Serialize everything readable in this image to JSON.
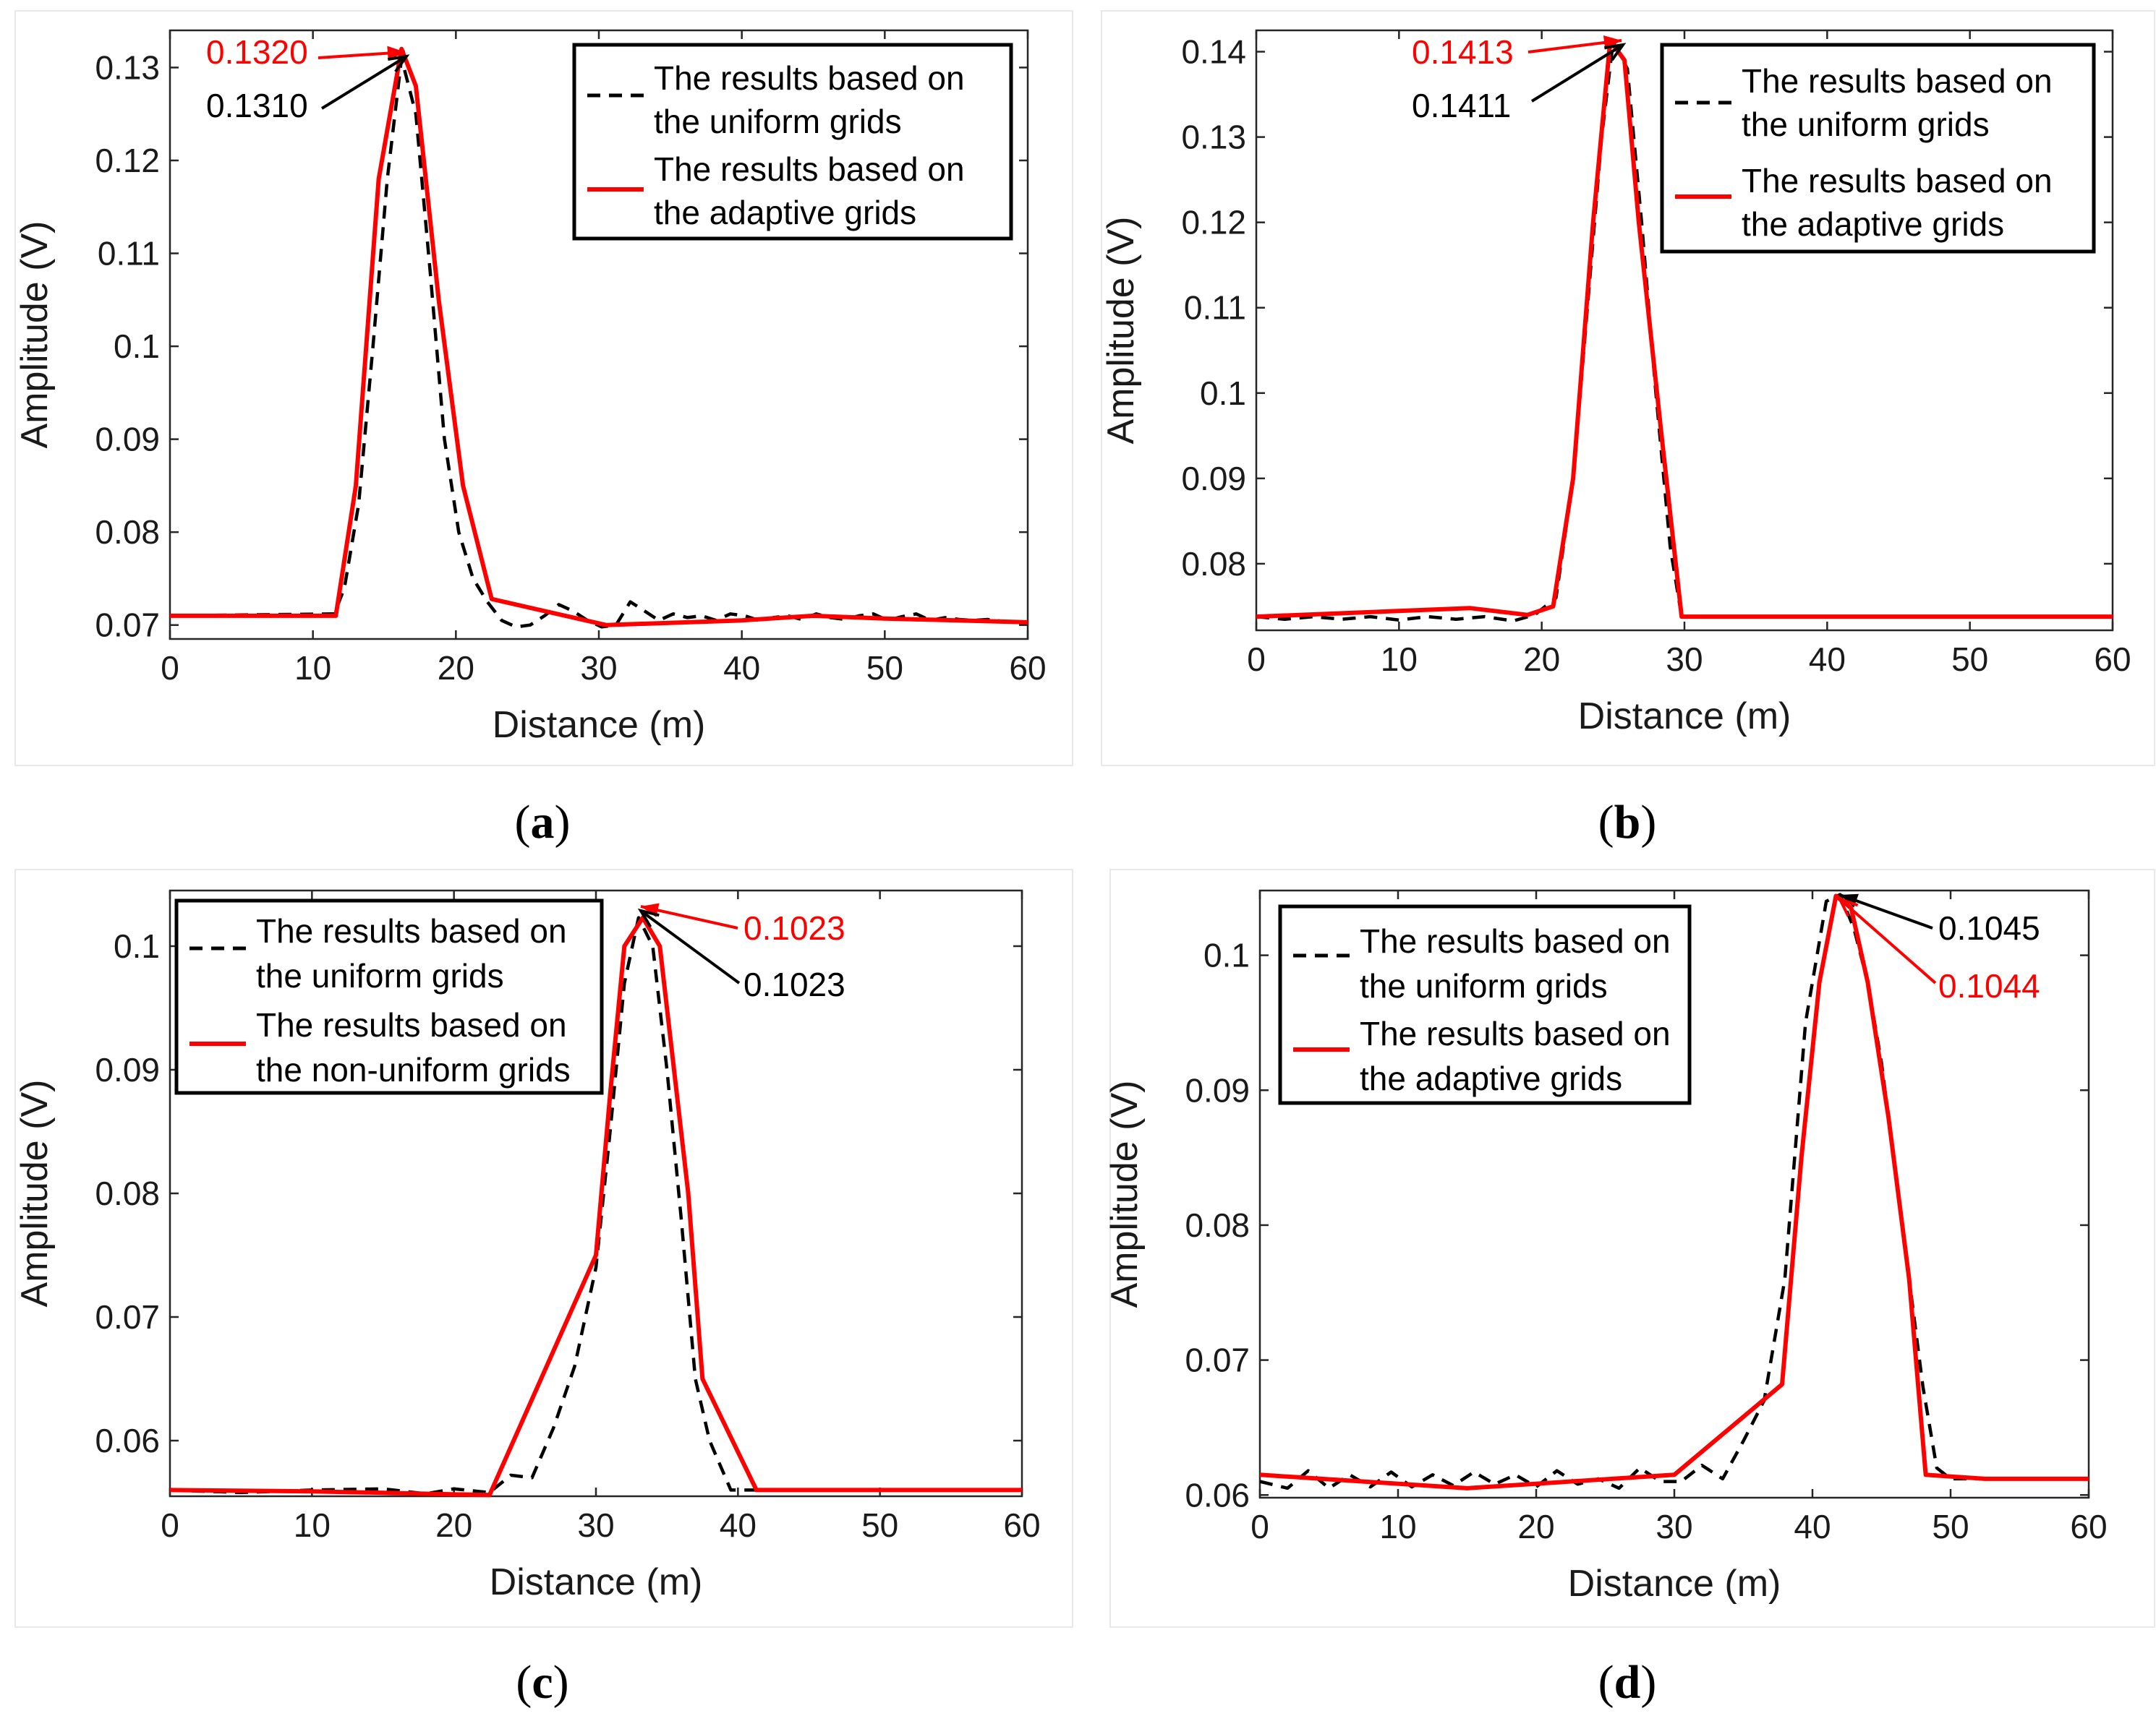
{
  "chart_data": [
    {
      "id": "a",
      "type": "line",
      "caption": "a",
      "xlabel": "Distance (m)",
      "ylabel": "Amplitude (V)",
      "xlim": [
        0,
        60
      ],
      "ylim": [
        0.0685,
        0.134
      ],
      "xticks": [
        "0",
        "10",
        "20",
        "30",
        "40",
        "50",
        "60"
      ],
      "yticks": [
        "0.07",
        "0.08",
        "0.09",
        "0.1",
        "0.11",
        "0.12",
        "0.13"
      ],
      "legend_position": "top-right",
      "series": [
        {
          "name": "The results based on the uniform grids",
          "color": "#000000",
          "style": "dashed",
          "x": [
            0,
            11.5,
            12.2,
            13.2,
            14.2,
            15.2,
            16.2,
            17.2,
            18.2,
            19.2,
            20.2,
            21.2,
            22.2,
            23.2,
            24.2,
            25.2,
            26.2,
            27.2,
            28.2,
            29.2,
            30.2,
            31.2,
            32.2,
            33.2,
            34.2,
            35.2,
            36.2,
            37.2,
            38.2,
            39.2,
            40.2,
            41.2,
            42.2,
            43.2,
            44.2,
            45.2,
            46.2,
            47.2,
            48.2,
            49.2,
            50.2,
            51.2,
            52.2,
            53.2,
            54.2,
            55.2,
            56.2,
            57.2,
            58.2,
            60
          ],
          "y": [
            0.071,
            0.0712,
            0.074,
            0.083,
            0.1,
            0.118,
            0.131,
            0.125,
            0.108,
            0.09,
            0.08,
            0.075,
            0.0725,
            0.0705,
            0.0698,
            0.07,
            0.071,
            0.0722,
            0.0715,
            0.0705,
            0.0698,
            0.07,
            0.0725,
            0.0715,
            0.0705,
            0.0712,
            0.0708,
            0.071,
            0.0705,
            0.0712,
            0.071,
            0.0705,
            0.0708,
            0.071,
            0.0706,
            0.0712,
            0.0708,
            0.0706,
            0.071,
            0.0712,
            0.0705,
            0.0709,
            0.0712,
            0.0705,
            0.0708,
            0.0706,
            0.0705,
            0.0706,
            0.0704,
            0.0703
          ]
        },
        {
          "name": "The results based on the adaptive grids",
          "color": "#ff0000",
          "style": "solid",
          "x": [
            0,
            11.6,
            13.0,
            14.6,
            16.2,
            17.2,
            18.8,
            20.5,
            22.5,
            30.5,
            40.0,
            45.0,
            50.0,
            60
          ],
          "y": [
            0.071,
            0.071,
            0.085,
            0.118,
            0.132,
            0.128,
            0.105,
            0.085,
            0.0728,
            0.07,
            0.0705,
            0.071,
            0.0707,
            0.0703
          ]
        }
      ],
      "annotations": [
        {
          "text": "0.1320",
          "color": "#ff0000"
        },
        {
          "text": "0.1310",
          "color": "#000000"
        }
      ]
    },
    {
      "id": "b",
      "type": "line",
      "caption": "b",
      "xlabel": "Distance (m)",
      "ylabel": "Amplitude (V)",
      "xlim": [
        0,
        60
      ],
      "ylim": [
        0.0722,
        0.1425
      ],
      "xticks": [
        "0",
        "10",
        "20",
        "30",
        "40",
        "50",
        "60"
      ],
      "yticks": [
        "0.08",
        "0.09",
        "0.1",
        "0.11",
        "0.12",
        "0.13",
        "0.14"
      ],
      "legend_position": "top-right",
      "series": [
        {
          "name": "The results based on the uniform grids",
          "color": "#000000",
          "style": "dashed",
          "x": [
            0,
            2,
            4,
            6,
            8,
            10,
            12,
            14,
            16,
            18,
            19.5,
            21,
            22.2,
            23.2,
            24.2,
            25.0,
            26.0,
            27.0,
            28.0,
            29.0,
            29.8,
            30.5,
            60
          ],
          "y": [
            0.0738,
            0.0735,
            0.0738,
            0.0735,
            0.0738,
            0.0734,
            0.0738,
            0.0735,
            0.0738,
            0.0733,
            0.074,
            0.076,
            0.09,
            0.11,
            0.13,
            0.1411,
            0.138,
            0.12,
            0.1,
            0.082,
            0.0738,
            0.0738,
            0.0738
          ]
        },
        {
          "name": "The results based on the adaptive grids",
          "color": "#ff0000",
          "style": "solid",
          "x": [
            0,
            15,
            19,
            20.8,
            22.2,
            23.6,
            24.8,
            25.8,
            26.8,
            28.4,
            29.8,
            60
          ],
          "y": [
            0.0738,
            0.0748,
            0.074,
            0.075,
            0.09,
            0.12,
            0.1413,
            0.139,
            0.12,
            0.095,
            0.0738,
            0.0738
          ]
        }
      ],
      "annotations": [
        {
          "text": "0.1413",
          "color": "#ff0000"
        },
        {
          "text": "0.1411",
          "color": "#000000"
        }
      ]
    },
    {
      "id": "c",
      "type": "line",
      "caption": "c",
      "xlabel": "Distance (m)",
      "ylabel": "Amplitude (V)",
      "xlim": [
        0,
        60
      ],
      "ylim": [
        0.0555,
        0.1045
      ],
      "xticks": [
        "0",
        "10",
        "20",
        "30",
        "40",
        "50",
        "60"
      ],
      "yticks": [
        "0.06",
        "0.07",
        "0.08",
        "0.09",
        "0.1"
      ],
      "legend_position": "top-left",
      "series": [
        {
          "name": "The results based on the uniform grids",
          "color": "#000000",
          "style": "dashed",
          "x": [
            0,
            5,
            10,
            15,
            18,
            20,
            22.5,
            24,
            25.5,
            27,
            28.5,
            30,
            31,
            32,
            33,
            34,
            35,
            36,
            37,
            38,
            39.5,
            41,
            60
          ],
          "y": [
            0.056,
            0.0558,
            0.056,
            0.0561,
            0.0557,
            0.0561,
            0.0558,
            0.0572,
            0.057,
            0.061,
            0.066,
            0.074,
            0.085,
            0.097,
            0.1023,
            0.1,
            0.09,
            0.078,
            0.065,
            0.06,
            0.056,
            0.056,
            0.056
          ]
        },
        {
          "name": "The results based on the non-uniform grids",
          "color": "#ff0000",
          "style": "solid",
          "x": [
            0,
            10,
            22.5,
            30,
            31,
            32,
            33.3,
            34.5,
            36.5,
            37.5,
            41.3,
            60
          ],
          "y": [
            0.056,
            0.0559,
            0.0556,
            0.075,
            0.088,
            0.1,
            0.1023,
            0.1,
            0.08,
            0.065,
            0.056,
            0.056
          ]
        }
      ],
      "annotations": [
        {
          "text": "0.1023",
          "color": "#ff0000"
        },
        {
          "text": "0.1023",
          "color": "#000000"
        }
      ]
    },
    {
      "id": "d",
      "type": "line",
      "caption": "d",
      "xlabel": "Distance (m)",
      "ylabel": "Amplitude (V)",
      "xlim": [
        0,
        60
      ],
      "ylim": [
        0.0598,
        0.1048
      ],
      "xticks": [
        "0",
        "10",
        "20",
        "30",
        "40",
        "50",
        "60"
      ],
      "yticks": [
        "0.06",
        "0.07",
        "0.08",
        "0.09",
        "0.1"
      ],
      "legend_position": "top-left",
      "series": [
        {
          "name": "The results based on the uniform grids",
          "color": "#000000",
          "style": "dashed",
          "x": [
            0,
            2,
            3.5,
            5,
            6.5,
            8,
            9.5,
            11,
            12.5,
            14,
            15.5,
            17,
            18.5,
            20,
            21.5,
            23,
            24.5,
            26,
            27.5,
            29,
            30.5,
            32,
            33.5,
            35,
            36.5,
            38,
            39.5,
            41,
            42,
            43,
            44,
            45,
            46,
            47,
            48,
            49,
            50,
            51,
            60
          ],
          "y": [
            0.061,
            0.0605,
            0.0618,
            0.0605,
            0.0615,
            0.0606,
            0.0617,
            0.0606,
            0.0615,
            0.0607,
            0.0617,
            0.0608,
            0.0615,
            0.0606,
            0.0618,
            0.0608,
            0.0612,
            0.0605,
            0.062,
            0.061,
            0.061,
            0.0622,
            0.0612,
            0.064,
            0.067,
            0.076,
            0.095,
            0.104,
            0.1045,
            0.102,
            0.098,
            0.092,
            0.084,
            0.076,
            0.068,
            0.062,
            0.0612,
            0.0612,
            0.0612
          ]
        },
        {
          "name": "The results based on the adaptive grids",
          "color": "#ff0000",
          "style": "solid",
          "x": [
            0,
            15,
            30,
            37.8,
            39.2,
            40.5,
            41.7,
            42.8,
            44.0,
            45.5,
            47.0,
            48.2,
            52.5,
            60
          ],
          "y": [
            0.0615,
            0.0605,
            0.0615,
            0.0682,
            0.085,
            0.098,
            0.1044,
            0.1035,
            0.098,
            0.088,
            0.076,
            0.0615,
            0.0612,
            0.0612
          ]
        }
      ],
      "annotations": [
        {
          "text": "0.1045",
          "color": "#000000"
        },
        {
          "text": "0.1044",
          "color": "#ff0000"
        }
      ]
    }
  ]
}
